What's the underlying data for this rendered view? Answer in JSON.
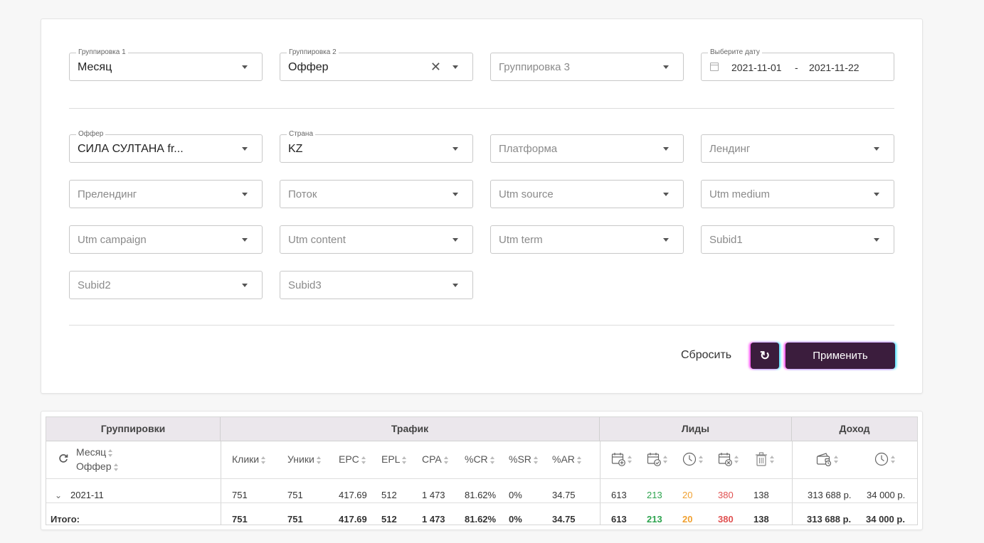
{
  "grouping": {
    "g1": {
      "label": "Группировка 1",
      "value": "Месяц"
    },
    "g2": {
      "label": "Группировка 2",
      "value": "Оффер",
      "clear": "✕"
    },
    "g3": {
      "placeholder": "Группировка 3"
    },
    "date": {
      "label": "Выберите дату",
      "from": "2021-11-01",
      "separator": "-",
      "to": "2021-11-22"
    }
  },
  "filters": {
    "offer": {
      "label": "Оффер",
      "value": "СИЛА СУЛТАНА fr..."
    },
    "country": {
      "label": "Страна",
      "value": "KZ"
    },
    "platform": {
      "placeholder": "Платформа"
    },
    "landing": {
      "placeholder": "Лендинг"
    },
    "prelanding": {
      "placeholder": "Прелендинг"
    },
    "stream": {
      "placeholder": "Поток"
    },
    "utm_source": {
      "placeholder": "Utm source"
    },
    "utm_medium": {
      "placeholder": "Utm medium"
    },
    "utm_campaign": {
      "placeholder": "Utm campaign"
    },
    "utm_content": {
      "placeholder": "Utm content"
    },
    "utm_term": {
      "placeholder": "Utm term"
    },
    "subid1": {
      "placeholder": "Subid1"
    },
    "subid2": {
      "placeholder": "Subid2"
    },
    "subid3": {
      "placeholder": "Subid3"
    }
  },
  "actions": {
    "reset": "Сбросить",
    "refresh_icon": "refresh-icon",
    "apply": "Применить"
  },
  "colors": {
    "brand": "#3b1d3d",
    "green": "#2ea44f",
    "orange": "#f0a030",
    "red": "#e05050"
  },
  "table": {
    "groups": {
      "grouping": "Группировки",
      "traffic": "Трафик",
      "leads": "Лиды",
      "income": "Доход"
    },
    "group_cols": [
      "Месяц",
      "Оффер"
    ],
    "traffic_cols": [
      "Клики",
      "Уники",
      "EPC",
      "EPL",
      "CPA",
      "%CR",
      "%SR",
      "%AR"
    ],
    "lead_icons": [
      "calendar-plus-icon",
      "calendar-check-icon",
      "clock-icon",
      "calendar-x-icon",
      "trash-icon"
    ],
    "income_icons": [
      "wallet-icon",
      "clock-icon"
    ],
    "rows": [
      {
        "label": "2021-11",
        "clicks": "751",
        "uniques": "751",
        "epc": "417.69",
        "epl": "512",
        "cpa": "1 473",
        "cr": "81.62%",
        "sr": "0%",
        "ar": "34.75",
        "new": "613",
        "approved": "213",
        "hold": "20",
        "rejected": "380",
        "trash": "138",
        "income": "313 688 р.",
        "income_hold": "34 000 р."
      }
    ],
    "total": {
      "label": "Итого:",
      "clicks": "751",
      "uniques": "751",
      "epc": "417.69",
      "epl": "512",
      "cpa": "1 473",
      "cr": "81.62%",
      "sr": "0%",
      "ar": "34.75",
      "new": "613",
      "approved": "213",
      "hold": "20",
      "rejected": "380",
      "trash": "138",
      "income": "313 688 р.",
      "income_hold": "34 000 р."
    }
  }
}
